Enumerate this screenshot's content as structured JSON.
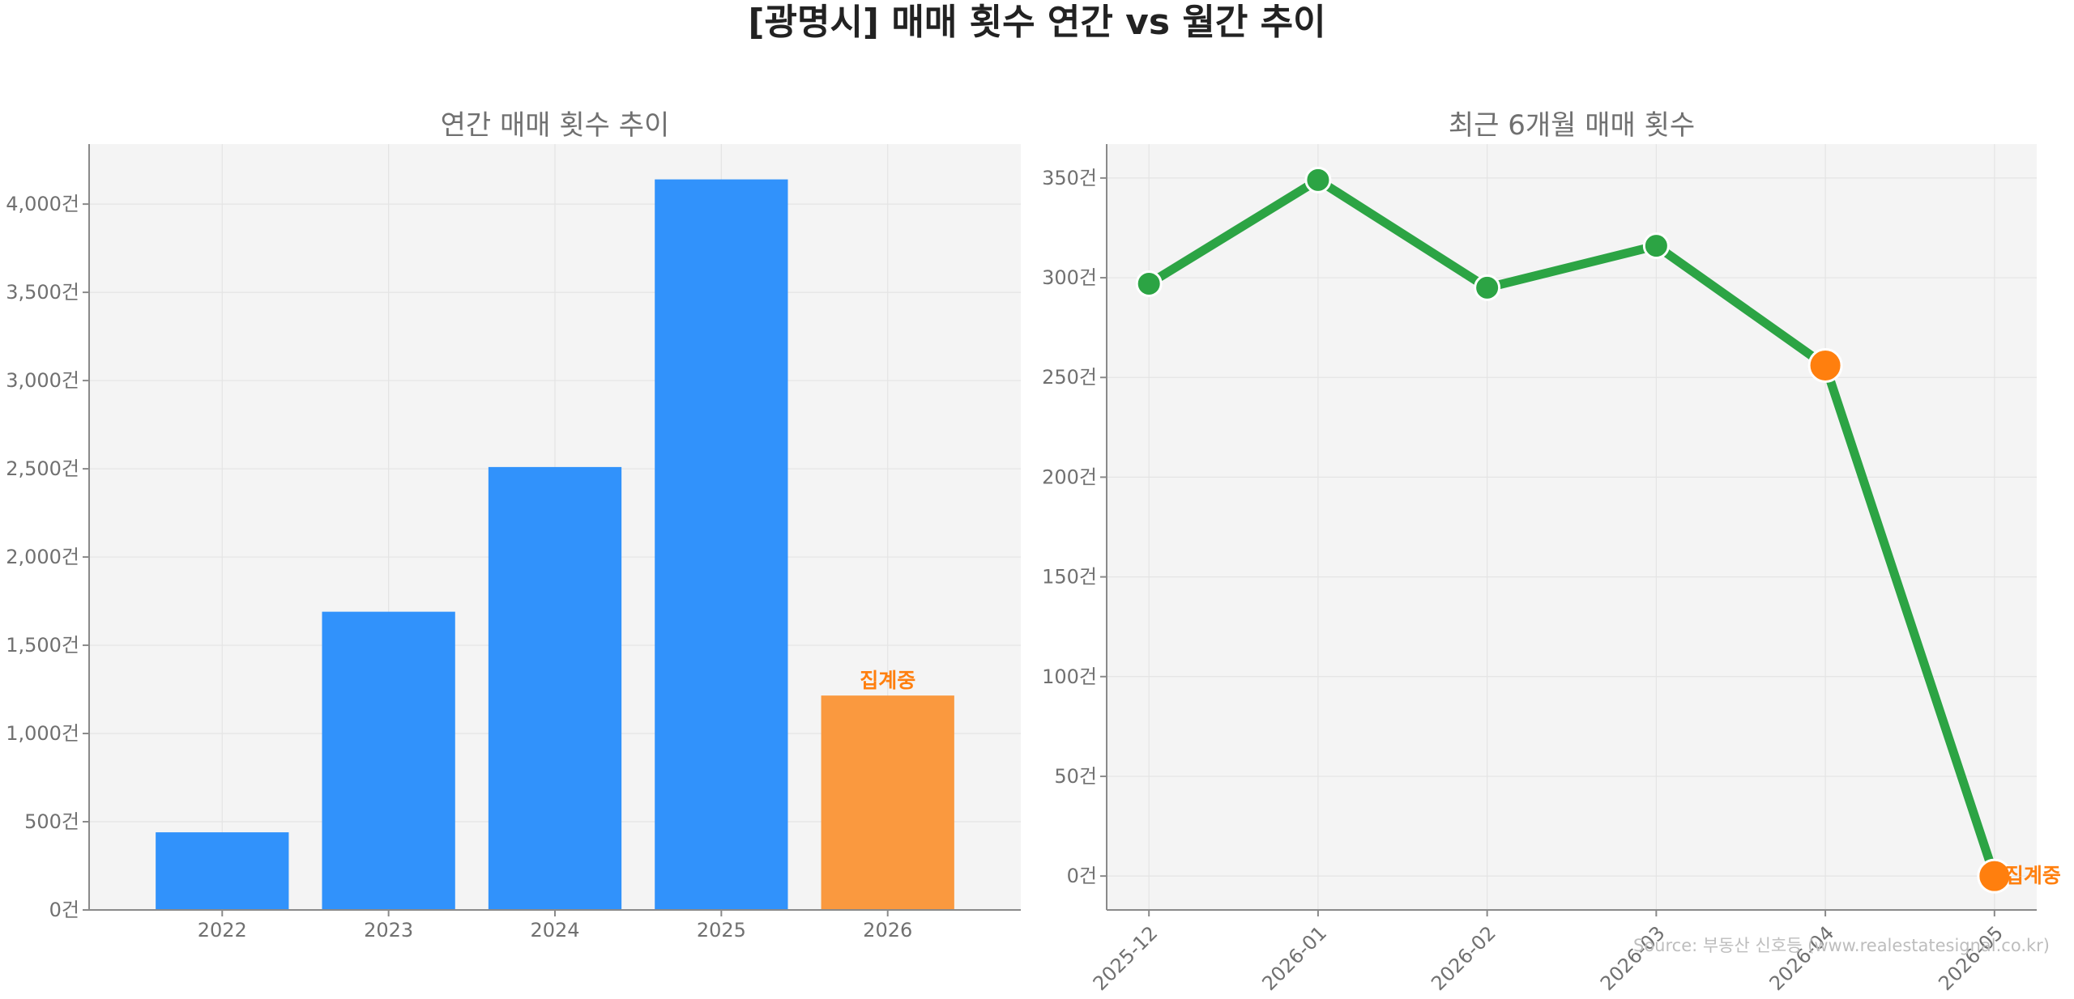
{
  "title": "[광명시] 매매 횟수 연간 vs 월간 추이",
  "source": "Source: 부동산 신호등 (www.realestatesignal.co.kr)",
  "colors": {
    "bar": "#3192fb",
    "highlight": "#fa993f",
    "accent_text": "#ff7f0e",
    "line": "#2ca444",
    "marker_highlight": "#ff7f0e",
    "plot_bg": "#f4f4f4",
    "grid": "#e4e4e4"
  },
  "chart_data": [
    {
      "type": "bar",
      "title": "연간 매매 횟수 추이",
      "categories": [
        "2022",
        "2023",
        "2024",
        "2025",
        "2026"
      ],
      "values": [
        440,
        1690,
        2510,
        4140,
        1215
      ],
      "highlight_index": 4,
      "status_label": "집계중",
      "unit": "건",
      "ylim": [
        0,
        4340
      ],
      "yticks": [
        0,
        500,
        1000,
        1500,
        2000,
        2500,
        3000,
        3500,
        4000
      ],
      "ytick_labels": [
        "0건",
        "500건",
        "1,000건",
        "1,500건",
        "2,000건",
        "2,500건",
        "3,000건",
        "3,500건",
        "4,000건"
      ],
      "grid": true
    },
    {
      "type": "line",
      "title": "최근 6개월 매매 횟수",
      "categories": [
        "2025-12",
        "2026-01",
        "2026-02",
        "2026-03",
        "2026-04",
        "2026-05"
      ],
      "values": [
        297,
        349,
        295,
        316,
        256,
        0
      ],
      "highlight_indices": [
        4,
        5
      ],
      "status_label": "집계중",
      "unit": "건",
      "ylim": [
        -17,
        367
      ],
      "yticks": [
        0,
        50,
        100,
        150,
        200,
        250,
        300,
        350
      ],
      "ytick_labels": [
        "0건",
        "50건",
        "100건",
        "150건",
        "200건",
        "250건",
        "300건",
        "350건"
      ],
      "grid": true
    }
  ]
}
